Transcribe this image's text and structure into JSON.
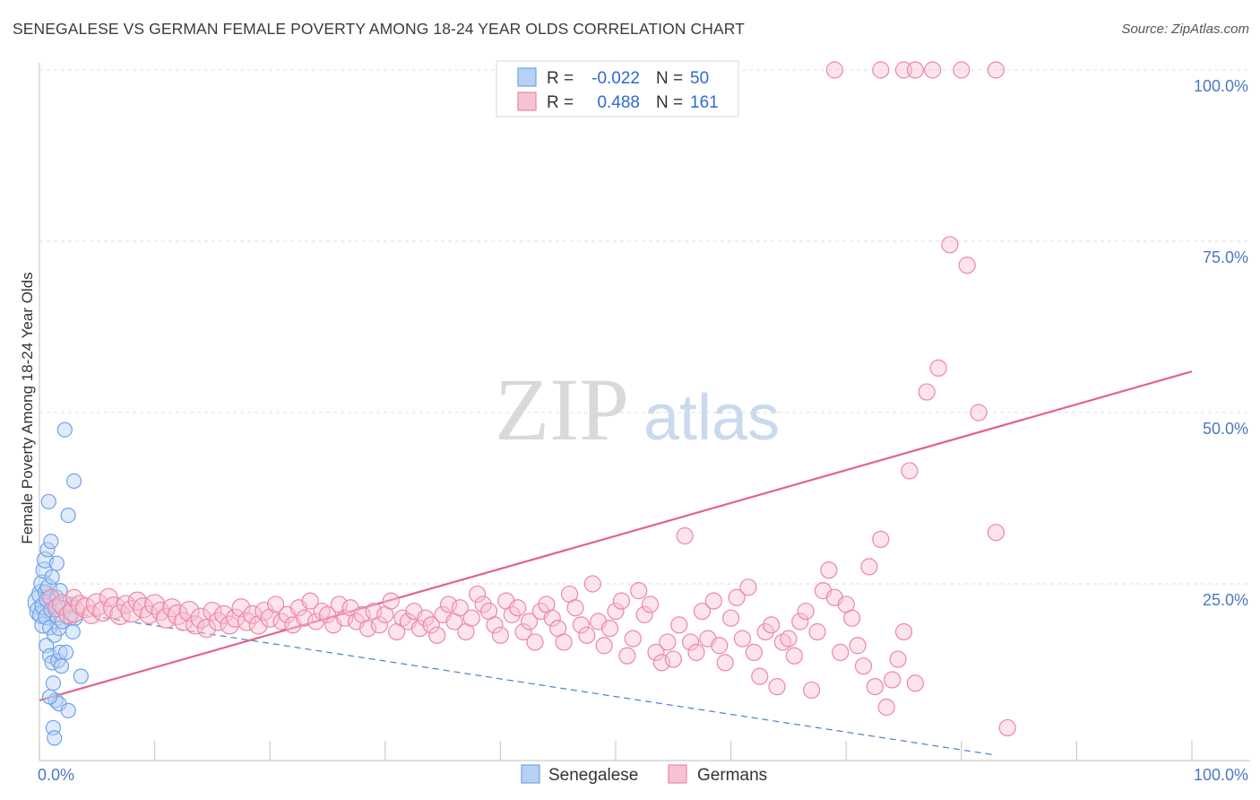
{
  "title": "SENEGALESE VS GERMAN FEMALE POVERTY AMONG 18-24 YEAR OLDS CORRELATION CHART",
  "source": "Source: ZipAtlas.com",
  "watermark": {
    "zip": "ZIP",
    "atlas": "atlas"
  },
  "colors": {
    "blue": "#6fa3e8",
    "blue_fill": "#b7d1f3",
    "pink": "#ee86a6",
    "pink_fill": "#f7c3d3",
    "pink_line": "#e0638c",
    "blue_line": "#4a7fd0",
    "tick_text": "#4a78c2",
    "grid": "#dddddd"
  },
  "legend": {
    "row1": {
      "r_label": "R =",
      "r_value": "-0.022",
      "n_label": "N =",
      "n_value": "50"
    },
    "row2": {
      "r_label": "R =",
      "r_value": "0.488",
      "n_label": "N =",
      "n_value": "161"
    }
  },
  "chart_data": {
    "type": "scatter",
    "title": "SENEGALESE VS GERMAN FEMALE POVERTY AMONG 18-24 YEAR OLDS CORRELATION CHART",
    "xlabel": "",
    "ylabel": "Female Poverty Among 18-24 Year Olds",
    "xlim": [
      0,
      100
    ],
    "ylim": [
      0,
      100
    ],
    "x_tick_labels": [
      "0.0%",
      "100.0%"
    ],
    "y_tick_labels": [
      "25.0%",
      "50.0%",
      "75.0%",
      "100.0%"
    ],
    "y_ticks": [
      25,
      50,
      75,
      100
    ],
    "grid": true,
    "legend_position": "top-center",
    "series": [
      {
        "name": "Senegalese",
        "color": "#6fa3e8",
        "r": -0.022,
        "n": 50,
        "trend": {
          "x": [
            0,
            83
          ],
          "y": [
            21.5,
            0
          ],
          "style": "dashed"
        },
        "points": [
          [
            0.1,
            22.3,
            14
          ],
          [
            0.1,
            21.0,
            12
          ],
          [
            0.2,
            20.5,
            10
          ],
          [
            0.2,
            23.5,
            11
          ],
          [
            0.3,
            19.0,
            9
          ],
          [
            0.3,
            25.0,
            10
          ],
          [
            0.4,
            27.0,
            9
          ],
          [
            0.4,
            21.8,
            10
          ],
          [
            0.5,
            28.5,
            9
          ],
          [
            0.5,
            23.8,
            8
          ],
          [
            0.6,
            20.2,
            9
          ],
          [
            0.6,
            16.0,
            8
          ],
          [
            0.7,
            22.7,
            9
          ],
          [
            0.7,
            30.0,
            8
          ],
          [
            0.8,
            37.0,
            8
          ],
          [
            0.8,
            24.5,
            9
          ],
          [
            0.9,
            18.6,
            8
          ],
          [
            0.9,
            14.5,
            8
          ],
          [
            1.0,
            31.2,
            8
          ],
          [
            1.0,
            21.2,
            8
          ],
          [
            1.1,
            26.0,
            8
          ],
          [
            1.1,
            13.5,
            8
          ],
          [
            1.2,
            10.5,
            8
          ],
          [
            1.2,
            4.0,
            8
          ],
          [
            1.3,
            2.5,
            8
          ],
          [
            1.3,
            17.5,
            8
          ],
          [
            1.4,
            21.6,
            8
          ],
          [
            1.4,
            8.0,
            8
          ],
          [
            1.5,
            23.0,
            8
          ],
          [
            1.5,
            28.0,
            8
          ],
          [
            1.6,
            13.8,
            8
          ],
          [
            1.6,
            20.0,
            8
          ],
          [
            1.7,
            18.5,
            8
          ],
          [
            1.7,
            7.5,
            8
          ],
          [
            1.8,
            24.0,
            8
          ],
          [
            1.8,
            15.0,
            8
          ],
          [
            1.9,
            13.0,
            8
          ],
          [
            2.0,
            21.5,
            8
          ],
          [
            2.0,
            19.5,
            8
          ],
          [
            2.2,
            47.5,
            8
          ],
          [
            2.3,
            15.0,
            8
          ],
          [
            2.5,
            35.0,
            8
          ],
          [
            2.5,
            6.5,
            8
          ],
          [
            2.7,
            20.0,
            8
          ],
          [
            2.8,
            22.0,
            8
          ],
          [
            2.9,
            18.0,
            8
          ],
          [
            3.0,
            40.0,
            8
          ],
          [
            3.1,
            20.0,
            8
          ],
          [
            3.6,
            11.5,
            8
          ],
          [
            0.9,
            8.5,
            8
          ]
        ]
      },
      {
        "name": "Germans",
        "color": "#ee86a6",
        "r": 0.488,
        "n": 161,
        "trend": {
          "x": [
            0,
            100
          ],
          "y": [
            8.0,
            56.0
          ],
          "style": "solid"
        },
        "points": [
          [
            1.0,
            23.0,
            9
          ],
          [
            1.5,
            21.5,
            10
          ],
          [
            2.0,
            22.0,
            11
          ],
          [
            2.5,
            20.5,
            10
          ],
          [
            3.0,
            21.0,
            12
          ],
          [
            3.0,
            23.0,
            9
          ],
          [
            3.5,
            22.0,
            10
          ],
          [
            4.0,
            21.5,
            11
          ],
          [
            4.5,
            20.5,
            10
          ],
          [
            5.0,
            22.0,
            12
          ],
          [
            5.5,
            21.0,
            11
          ],
          [
            6.0,
            23.0,
            10
          ],
          [
            6.5,
            21.5,
            12
          ],
          [
            7.0,
            20.5,
            11
          ],
          [
            7.5,
            22.0,
            10
          ],
          [
            8.0,
            21.0,
            12
          ],
          [
            8.5,
            22.5,
            10
          ],
          [
            9.0,
            21.5,
            11
          ],
          [
            9.5,
            20.5,
            10
          ],
          [
            10.0,
            22.0,
            11
          ],
          [
            10.5,
            21.0,
            10
          ],
          [
            11.0,
            20.0,
            11
          ],
          [
            11.5,
            21.5,
            10
          ],
          [
            12.0,
            20.5,
            11
          ],
          [
            12.5,
            19.5,
            10
          ],
          [
            13.0,
            21.0,
            11
          ],
          [
            13.5,
            19.0,
            10
          ],
          [
            14.0,
            20.0,
            11
          ],
          [
            14.5,
            18.5,
            10
          ],
          [
            15.0,
            21.0,
            10
          ],
          [
            15.5,
            19.5,
            10
          ],
          [
            16.0,
            20.5,
            10
          ],
          [
            16.5,
            19.0,
            10
          ],
          [
            17.0,
            20.0,
            10
          ],
          [
            17.5,
            21.5,
            10
          ],
          [
            18.0,
            19.5,
            10
          ],
          [
            18.5,
            20.5,
            10
          ],
          [
            19.0,
            19.0,
            10
          ],
          [
            19.5,
            21.0,
            10
          ],
          [
            20.0,
            20.0,
            10
          ],
          [
            20.5,
            22.0,
            9
          ],
          [
            21.0,
            19.5,
            9
          ],
          [
            21.5,
            20.5,
            9
          ],
          [
            22.0,
            19.0,
            9
          ],
          [
            22.5,
            21.5,
            9
          ],
          [
            23.0,
            20.0,
            9
          ],
          [
            23.5,
            22.5,
            9
          ],
          [
            24.0,
            19.5,
            9
          ],
          [
            24.5,
            21.0,
            9
          ],
          [
            25.0,
            20.5,
            9
          ],
          [
            25.5,
            19.0,
            9
          ],
          [
            26.0,
            22.0,
            9
          ],
          [
            26.5,
            20.0,
            9
          ],
          [
            27.0,
            21.5,
            9
          ],
          [
            27.5,
            19.5,
            9
          ],
          [
            28.0,
            20.5,
            9
          ],
          [
            28.5,
            18.5,
            9
          ],
          [
            29.0,
            21.0,
            9
          ],
          [
            29.5,
            19.0,
            9
          ],
          [
            30.0,
            20.5,
            9
          ],
          [
            30.5,
            22.5,
            9
          ],
          [
            31.0,
            18.0,
            9
          ],
          [
            31.5,
            20.0,
            9
          ],
          [
            32.0,
            19.5,
            9
          ],
          [
            32.5,
            21.0,
            9
          ],
          [
            33.0,
            18.5,
            9
          ],
          [
            33.5,
            20.0,
            9
          ],
          [
            34.0,
            19.0,
            9
          ],
          [
            34.5,
            17.5,
            9
          ],
          [
            35.0,
            20.5,
            9
          ],
          [
            35.5,
            22.0,
            9
          ],
          [
            36.0,
            19.5,
            9
          ],
          [
            36.5,
            21.5,
            9
          ],
          [
            37.0,
            18.0,
            9
          ],
          [
            37.5,
            20.0,
            9
          ],
          [
            38.0,
            23.5,
            9
          ],
          [
            38.5,
            22.0,
            9
          ],
          [
            39.0,
            21.0,
            9
          ],
          [
            39.5,
            19.0,
            9
          ],
          [
            40.0,
            17.5,
            9
          ],
          [
            40.5,
            22.5,
            9
          ],
          [
            41.0,
            20.5,
            9
          ],
          [
            41.5,
            21.5,
            9
          ],
          [
            42.0,
            18.0,
            9
          ],
          [
            42.5,
            19.5,
            9
          ],
          [
            43.0,
            16.5,
            9
          ],
          [
            43.5,
            21.0,
            9
          ],
          [
            44.0,
            22.0,
            9
          ],
          [
            44.5,
            20.0,
            9
          ],
          [
            45.0,
            18.5,
            9
          ],
          [
            45.5,
            16.5,
            9
          ],
          [
            46.0,
            23.5,
            9
          ],
          [
            46.5,
            21.5,
            9
          ],
          [
            47.0,
            19.0,
            9
          ],
          [
            47.5,
            17.5,
            9
          ],
          [
            48.0,
            25.0,
            9
          ],
          [
            48.5,
            19.5,
            9
          ],
          [
            49.0,
            16.0,
            9
          ],
          [
            49.5,
            18.5,
            9
          ],
          [
            50.0,
            21.0,
            9
          ],
          [
            50.5,
            22.5,
            9
          ],
          [
            51.0,
            14.5,
            9
          ],
          [
            51.5,
            17.0,
            9
          ],
          [
            52.0,
            24.0,
            9
          ],
          [
            52.5,
            20.5,
            9
          ],
          [
            53.0,
            22.0,
            9
          ],
          [
            53.5,
            15.0,
            9
          ],
          [
            54.0,
            13.5,
            9
          ],
          [
            54.5,
            16.5,
            9
          ],
          [
            55.0,
            14.0,
            9
          ],
          [
            55.5,
            19.0,
            9
          ],
          [
            56.0,
            32.0,
            9
          ],
          [
            56.5,
            16.5,
            9
          ],
          [
            57.0,
            15.0,
            9
          ],
          [
            57.5,
            21.0,
            9
          ],
          [
            58.0,
            17.0,
            9
          ],
          [
            58.5,
            22.5,
            9
          ],
          [
            59.0,
            16.0,
            9
          ],
          [
            59.5,
            13.5,
            9
          ],
          [
            60.0,
            20.0,
            9
          ],
          [
            60.5,
            23.0,
            9
          ],
          [
            61.0,
            17.0,
            9
          ],
          [
            61.5,
            24.5,
            9
          ],
          [
            62.0,
            15.0,
            9
          ],
          [
            62.5,
            11.5,
            9
          ],
          [
            63.0,
            18.0,
            9
          ],
          [
            63.5,
            19.0,
            9
          ],
          [
            64.0,
            10.0,
            9
          ],
          [
            64.5,
            16.5,
            9
          ],
          [
            65.0,
            17.0,
            9
          ],
          [
            65.5,
            14.5,
            9
          ],
          [
            66.0,
            19.5,
            9
          ],
          [
            66.5,
            21.0,
            9
          ],
          [
            67.0,
            9.5,
            9
          ],
          [
            67.5,
            18.0,
            9
          ],
          [
            68.0,
            24.0,
            9
          ],
          [
            68.5,
            27.0,
            9
          ],
          [
            69.0,
            23.0,
            9
          ],
          [
            69.5,
            15.0,
            9
          ],
          [
            70.0,
            22.0,
            9
          ],
          [
            70.5,
            20.0,
            9
          ],
          [
            71.0,
            16.0,
            9
          ],
          [
            71.5,
            13.0,
            9
          ],
          [
            72.0,
            27.5,
            9
          ],
          [
            72.5,
            10.0,
            9
          ],
          [
            73.0,
            31.5,
            9
          ],
          [
            73.5,
            7.0,
            9
          ],
          [
            74.0,
            11.0,
            9
          ],
          [
            74.5,
            14.0,
            9
          ],
          [
            75.0,
            18.0,
            9
          ],
          [
            76.0,
            10.5,
            9
          ],
          [
            77.0,
            53.0,
            9
          ],
          [
            78.0,
            56.5,
            9
          ],
          [
            79.0,
            74.5,
            9
          ],
          [
            80.5,
            71.5,
            9
          ],
          [
            81.5,
            50.0,
            9
          ],
          [
            83.0,
            32.5,
            9
          ],
          [
            84.0,
            4.0,
            9
          ],
          [
            75.5,
            41.5,
            9
          ],
          [
            69.0,
            100.0,
            9
          ],
          [
            73.0,
            100.0,
            9
          ],
          [
            75.0,
            100.0,
            9
          ],
          [
            76.0,
            100.0,
            9
          ],
          [
            77.5,
            100.0,
            9
          ],
          [
            80.0,
            100.0,
            9
          ],
          [
            83.0,
            100.0,
            9
          ]
        ]
      }
    ]
  }
}
